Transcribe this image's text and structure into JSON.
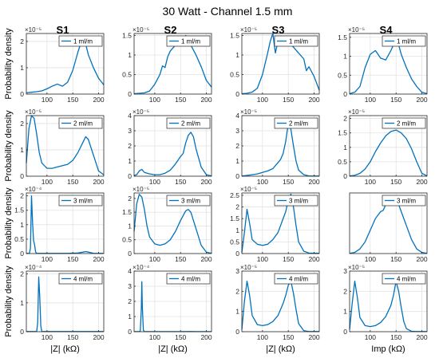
{
  "figure": {
    "title": "30 Watt - Channel 1.5 mm",
    "column_titles": [
      "S1",
      "S2",
      "S3",
      "S4"
    ],
    "row_ylabels": [
      "Probability density",
      "Probability density",
      "Probability density",
      "Probability density"
    ],
    "column_xlabels": [
      "|Z| (kΩ)",
      "|Z| (kΩ)",
      "|Z| (kΩ)",
      "Imp (kΩ)"
    ],
    "line_color": "#0072bd"
  },
  "chart_data": [
    {
      "type": "line",
      "row": 0,
      "col": 0,
      "legend": "1 ml/m",
      "exponent": "×10⁻⁵",
      "xlim": [
        60,
        210
      ],
      "ylim": [
        0,
        2.3
      ],
      "xticks": [
        100,
        150,
        200
      ],
      "yticks": [
        0,
        1,
        2
      ],
      "x": [
        60,
        70,
        80,
        90,
        100,
        110,
        120,
        130,
        140,
        150,
        160,
        165,
        170,
        175,
        180,
        190,
        200,
        210
      ],
      "y": [
        0.05,
        0.07,
        0.09,
        0.12,
        0.2,
        0.3,
        0.38,
        0.3,
        0.45,
        0.9,
        1.6,
        1.9,
        2.1,
        1.9,
        1.5,
        1.0,
        0.6,
        0.35
      ]
    },
    {
      "type": "line",
      "row": 0,
      "col": 1,
      "legend": "1 ml/m",
      "exponent": "×10⁻⁵",
      "xlim": [
        60,
        210
      ],
      "ylim": [
        0,
        1.55
      ],
      "xticks": [
        100,
        150,
        200
      ],
      "yticks": [
        0,
        0.5,
        1,
        1.5
      ],
      "x": [
        60,
        70,
        80,
        90,
        100,
        110,
        115,
        120,
        125,
        130,
        140,
        150,
        160,
        165,
        170,
        180,
        190,
        200,
        210
      ],
      "y": [
        0.01,
        0.02,
        0.03,
        0.08,
        0.25,
        0.5,
        0.72,
        0.68,
        0.95,
        1.1,
        1.25,
        1.35,
        1.5,
        1.4,
        1.25,
        1.0,
        0.7,
        0.35,
        0.18
      ]
    },
    {
      "type": "line",
      "row": 0,
      "col": 2,
      "legend": "1 ml/m",
      "exponent": "×10⁻⁵",
      "xlim": [
        60,
        210
      ],
      "ylim": [
        0,
        1.55
      ],
      "xticks": [
        100,
        150,
        200
      ],
      "yticks": [
        0,
        0.5,
        1,
        1.5
      ],
      "x": [
        60,
        70,
        80,
        90,
        100,
        110,
        115,
        120,
        125,
        130,
        140,
        150,
        160,
        170,
        180,
        185,
        190,
        200,
        210
      ],
      "y": [
        0.01,
        0.02,
        0.05,
        0.15,
        0.5,
        1.05,
        1.35,
        1.55,
        1.05,
        1.35,
        1.45,
        1.35,
        1.2,
        1.05,
        0.9,
        0.6,
        0.7,
        0.45,
        0.1
      ]
    },
    {
      "type": "line",
      "row": 0,
      "col": 3,
      "legend": "1 ml/m",
      "exponent": "×10⁻⁵",
      "xlim": [
        60,
        210
      ],
      "ylim": [
        0,
        1.6
      ],
      "xticks": [
        100,
        150,
        200
      ],
      "yticks": [
        0,
        0.5,
        1,
        1.5
      ],
      "x": [
        60,
        70,
        80,
        90,
        100,
        110,
        120,
        130,
        140,
        150,
        155,
        160,
        170,
        180,
        190,
        200,
        210
      ],
      "y": [
        0.01,
        0.05,
        0.2,
        0.7,
        1.05,
        1.15,
        0.95,
        0.9,
        1.15,
        1.45,
        1.3,
        1.05,
        0.7,
        0.4,
        0.2,
        0.05,
        0.01
      ]
    },
    {
      "type": "line",
      "row": 1,
      "col": 0,
      "legend": "2 ml/m",
      "exponent": "×10⁻⁵",
      "xlim": [
        60,
        210
      ],
      "ylim": [
        0,
        2.3
      ],
      "xticks": [
        100,
        150,
        200
      ],
      "yticks": [
        0,
        1,
        2
      ],
      "x": [
        60,
        65,
        70,
        75,
        80,
        85,
        90,
        100,
        110,
        120,
        130,
        140,
        150,
        160,
        170,
        175,
        180,
        190,
        200,
        210
      ],
      "y": [
        0.5,
        1.8,
        2.3,
        2.2,
        1.6,
        0.9,
        0.5,
        0.3,
        0.3,
        0.35,
        0.4,
        0.45,
        0.6,
        0.9,
        1.3,
        1.5,
        1.4,
        0.8,
        0.2,
        0.05
      ]
    },
    {
      "type": "line",
      "row": 1,
      "col": 1,
      "legend": "2 ml/m",
      "exponent": "×10⁻⁵",
      "xlim": [
        60,
        210
      ],
      "ylim": [
        0,
        4
      ],
      "xticks": [
        100,
        150,
        200
      ],
      "yticks": [
        0,
        1,
        2,
        3,
        4
      ],
      "x": [
        60,
        65,
        70,
        75,
        80,
        90,
        100,
        110,
        120,
        130,
        140,
        150,
        155,
        160,
        165,
        170,
        175,
        180,
        190,
        200,
        210
      ],
      "y": [
        0.05,
        0.1,
        0.35,
        0.45,
        0.25,
        0.15,
        0.1,
        0.1,
        0.2,
        0.4,
        0.8,
        1.3,
        1.5,
        2.2,
        2.7,
        2.9,
        2.6,
        1.8,
        0.6,
        0.1,
        0.02
      ]
    },
    {
      "type": "line",
      "row": 1,
      "col": 2,
      "legend": "2 ml/m",
      "exponent": "×10⁻⁵",
      "xlim": [
        60,
        210
      ],
      "ylim": [
        0,
        4
      ],
      "xticks": [
        100,
        150,
        200
      ],
      "yticks": [
        0,
        1,
        2,
        3,
        4
      ],
      "x": [
        60,
        70,
        80,
        90,
        100,
        110,
        120,
        130,
        135,
        140,
        145,
        150,
        155,
        160,
        165,
        170,
        180,
        190,
        210
      ],
      "y": [
        0.01,
        0.05,
        0.1,
        0.15,
        0.25,
        0.35,
        0.5,
        0.9,
        1.1,
        1.5,
        2.3,
        3.5,
        3.1,
        2.0,
        1.0,
        0.4,
        0.1,
        0.02,
        0.01
      ]
    },
    {
      "type": "line",
      "row": 1,
      "col": 3,
      "legend": "2 ml/m",
      "exponent": "×10⁻⁵",
      "xlim": [
        60,
        210
      ],
      "ylim": [
        0,
        2.1
      ],
      "xticks": [
        100,
        150,
        200
      ],
      "yticks": [
        0,
        0.5,
        1,
        1.5,
        2
      ],
      "x": [
        60,
        70,
        80,
        90,
        100,
        110,
        120,
        130,
        140,
        150,
        160,
        170,
        180,
        190,
        200,
        210
      ],
      "y": [
        0.01,
        0.03,
        0.1,
        0.25,
        0.5,
        0.85,
        1.15,
        1.4,
        1.55,
        1.6,
        1.5,
        1.3,
        0.95,
        0.5,
        0.1,
        0.01
      ]
    },
    {
      "type": "line",
      "row": 2,
      "col": 0,
      "legend": "3 ml/m",
      "exponent": "×10⁻⁴",
      "xlim": [
        60,
        210
      ],
      "ylim": [
        0,
        2.1
      ],
      "xticks": [
        100,
        150,
        200
      ],
      "yticks": [
        0,
        0.5,
        1,
        1.5,
        2
      ],
      "x": [
        60,
        66,
        68,
        70,
        72,
        74,
        76,
        78,
        80,
        85,
        90,
        100,
        120,
        140,
        160,
        170,
        175,
        180,
        190,
        210
      ],
      "y": [
        0.005,
        0.01,
        0.2,
        2.0,
        1.1,
        0.45,
        0.3,
        0.05,
        0.01,
        0.005,
        0.005,
        0.005,
        0.005,
        0.005,
        0.02,
        0.05,
        0.07,
        0.05,
        0.01,
        0.005
      ]
    },
    {
      "type": "line",
      "row": 2,
      "col": 1,
      "legend": "3 ml/m",
      "exponent": "×10⁻⁵",
      "xlim": [
        60,
        210
      ],
      "ylim": [
        0,
        2.2
      ],
      "xticks": [
        100,
        150,
        200
      ],
      "yticks": [
        0,
        0.5,
        1,
        1.5,
        2
      ],
      "x": [
        60,
        65,
        70,
        75,
        80,
        85,
        90,
        100,
        110,
        120,
        130,
        140,
        150,
        160,
        165,
        170,
        180,
        190,
        200,
        210
      ],
      "y": [
        0.8,
        1.8,
        2.15,
        2.05,
        1.6,
        1.0,
        0.6,
        0.35,
        0.3,
        0.35,
        0.5,
        0.8,
        1.2,
        1.55,
        1.6,
        1.5,
        0.9,
        0.3,
        0.05,
        0.01
      ]
    },
    {
      "type": "line",
      "row": 2,
      "col": 2,
      "legend": "3 ml/m",
      "exponent": "×10⁻⁵",
      "xlim": [
        60,
        210
      ],
      "ylim": [
        0,
        2.6
      ],
      "xticks": [
        100,
        150,
        200
      ],
      "yticks": [
        0,
        0.5,
        1,
        1.5,
        2,
        2.5
      ],
      "x": [
        60,
        65,
        70,
        75,
        80,
        90,
        100,
        110,
        120,
        130,
        140,
        145,
        150,
        155,
        160,
        165,
        170,
        180,
        190,
        210
      ],
      "y": [
        0.05,
        0.9,
        1.9,
        1.3,
        0.6,
        0.4,
        0.35,
        0.4,
        0.6,
        0.9,
        1.5,
        1.8,
        2.3,
        2.55,
        2.0,
        1.2,
        0.5,
        0.1,
        0.02,
        0.01
      ]
    },
    {
      "type": "line",
      "row": 2,
      "col": 3,
      "legend": "3 ml/m",
      "exponent": "",
      "xlim": [
        60,
        210
      ],
      "ylim": [
        0,
        2.6
      ],
      "xticks": [
        100,
        150,
        200
      ],
      "yticks": [],
      "x": [
        60,
        70,
        80,
        90,
        100,
        110,
        120,
        125,
        130,
        140,
        150,
        155,
        160,
        170,
        180,
        190,
        200,
        210
      ],
      "y": [
        0.01,
        0.05,
        0.2,
        0.5,
        1.0,
        1.5,
        1.8,
        1.85,
        2.1,
        2.15,
        2.2,
        2.1,
        1.8,
        1.2,
        0.6,
        0.2,
        0.05,
        0.01
      ]
    },
    {
      "type": "line",
      "row": 3,
      "col": 0,
      "legend": "4 ml/m",
      "exponent": "×10⁻⁴",
      "xlim": [
        60,
        210
      ],
      "ylim": [
        0,
        2.1
      ],
      "xticks": [
        100,
        150,
        200
      ],
      "yticks": [
        0,
        1,
        2
      ],
      "x": [
        60,
        75,
        80,
        82,
        84,
        86,
        88,
        90,
        95,
        100,
        150,
        210
      ],
      "y": [
        0.005,
        0.005,
        0.01,
        0.3,
        1.9,
        1.2,
        0.2,
        0.01,
        0.005,
        0.005,
        0.005,
        0.005
      ]
    },
    {
      "type": "line",
      "row": 3,
      "col": 1,
      "legend": "4 ml/m",
      "exponent": "×10⁻⁴",
      "xlim": [
        60,
        210
      ],
      "ylim": [
        0,
        4
      ],
      "xticks": [
        100,
        150,
        200
      ],
      "yticks": [
        0,
        1,
        2,
        3,
        4
      ],
      "x": [
        60,
        70,
        72,
        74,
        75,
        76,
        78,
        80,
        90,
        100,
        150,
        170,
        180,
        210
      ],
      "y": [
        0.005,
        0.005,
        0.05,
        1.5,
        3.3,
        1.6,
        0.1,
        0.01,
        0.005,
        0.005,
        0.005,
        0.01,
        0.005,
        0.005
      ]
    },
    {
      "type": "line",
      "row": 3,
      "col": 2,
      "legend": "4 ml/m",
      "exponent": "×10⁻⁵",
      "xlim": [
        60,
        210
      ],
      "ylim": [
        0,
        3
      ],
      "xticks": [
        100,
        150,
        200
      ],
      "yticks": [
        0,
        1,
        2,
        3
      ],
      "x": [
        60,
        65,
        70,
        75,
        80,
        90,
        100,
        110,
        120,
        130,
        140,
        145,
        150,
        155,
        160,
        165,
        170,
        180,
        190,
        210
      ],
      "y": [
        0.1,
        1.5,
        2.5,
        1.8,
        0.8,
        0.35,
        0.3,
        0.35,
        0.5,
        0.8,
        1.4,
        1.8,
        2.3,
        2.5,
        1.9,
        1.1,
        0.4,
        0.05,
        0.01,
        0.01
      ]
    },
    {
      "type": "line",
      "row": 3,
      "col": 3,
      "legend": "4 ml/m",
      "exponent": "×10⁻⁵",
      "xlim": [
        60,
        210
      ],
      "ylim": [
        0,
        3
      ],
      "xticks": [
        100,
        150,
        200
      ],
      "yticks": [
        0,
        1,
        2,
        3
      ],
      "x": [
        60,
        65,
        70,
        75,
        80,
        90,
        100,
        110,
        120,
        130,
        140,
        145,
        150,
        155,
        160,
        165,
        170,
        180,
        190,
        210
      ],
      "y": [
        0.1,
        1.4,
        2.5,
        1.7,
        0.7,
        0.3,
        0.25,
        0.3,
        0.45,
        0.75,
        1.3,
        1.8,
        2.5,
        2.0,
        1.2,
        0.5,
        0.15,
        0.02,
        0.01,
        0.01
      ]
    }
  ]
}
